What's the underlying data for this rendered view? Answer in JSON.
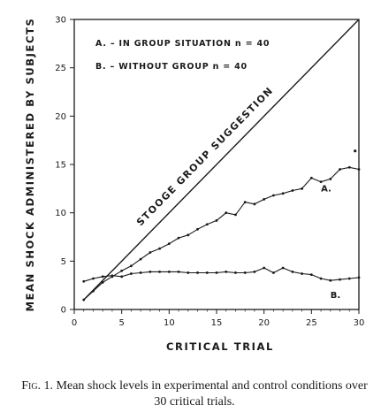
{
  "chart_data": {
    "type": "line",
    "xlabel": "CRITICAL TRIAL",
    "ylabel": "MEAN SHOCK ADMINISTERED BY SUBJECTS",
    "xlim": [
      0,
      30
    ],
    "ylim": [
      0,
      30
    ],
    "xticks": [
      0,
      5,
      10,
      15,
      20,
      25,
      30
    ],
    "yticks": [
      0,
      5,
      10,
      15,
      20,
      25,
      30
    ],
    "grid": false,
    "legend": [
      "A. – IN GROUP SITUATION n = 40",
      "B. – WITHOUT GROUP n = 40"
    ],
    "series": [
      {
        "name": "STOOGE GROUP SUGGESTION",
        "x": [
          1,
          30
        ],
        "y": [
          1,
          30
        ]
      },
      {
        "name": "A.",
        "x": [
          1,
          2,
          3,
          4,
          5,
          6,
          7,
          8,
          9,
          10,
          11,
          12,
          13,
          14,
          15,
          16,
          17,
          18,
          19,
          20,
          21,
          22,
          23,
          24,
          25,
          26,
          27,
          28,
          29,
          30
        ],
        "y": [
          1.0,
          1.9,
          2.8,
          3.4,
          4.0,
          4.5,
          5.2,
          5.9,
          6.3,
          6.8,
          7.4,
          7.7,
          8.3,
          8.8,
          9.2,
          10.0,
          9.8,
          11.1,
          10.9,
          11.4,
          11.8,
          12.0,
          12.3,
          12.5,
          13.6,
          13.2,
          13.5,
          14.5,
          14.7,
          14.5
        ]
      },
      {
        "name": "B.",
        "x": [
          1,
          2,
          3,
          4,
          5,
          6,
          7,
          8,
          9,
          10,
          11,
          12,
          13,
          14,
          15,
          16,
          17,
          18,
          19,
          20,
          21,
          22,
          23,
          24,
          25,
          26,
          27,
          28,
          29,
          30
        ],
        "y": [
          2.9,
          3.2,
          3.4,
          3.5,
          3.4,
          3.7,
          3.8,
          3.9,
          3.9,
          3.9,
          3.9,
          3.8,
          3.8,
          3.8,
          3.8,
          3.9,
          3.8,
          3.8,
          3.9,
          4.3,
          3.8,
          4.3,
          3.9,
          3.7,
          3.6,
          3.2,
          3.0,
          3.1,
          3.2,
          3.3
        ]
      }
    ],
    "annotations": [
      "STOOGE GROUP SUGGESTION",
      "A.",
      "B."
    ]
  },
  "caption": {
    "label": "Fig. 1.",
    "text": "Mean shock levels in experimental and control conditions over 30 critical trials."
  }
}
